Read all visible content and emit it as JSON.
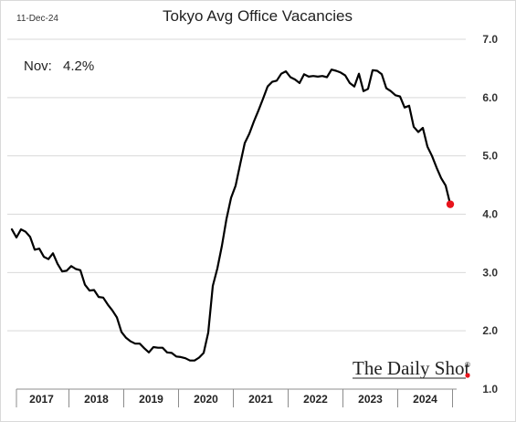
{
  "date_stamp": "11-Dec-24",
  "watermark": "The Daily Shot",
  "watermark_mark": "®",
  "chart_data": {
    "type": "line",
    "title": "Tokyo Avg Office Vacancies",
    "annotation": {
      "label": "Nov:",
      "value": "4.2%"
    },
    "y_ticks": [
      "7.0",
      "6.0",
      "5.0",
      "4.0",
      "3.0",
      "2.0",
      "1.0"
    ],
    "ylim": [
      1.0,
      7.0
    ],
    "x_labels": [
      "2017",
      "2018",
      "2019",
      "2020",
      "2021",
      "2022",
      "2023",
      "2024"
    ],
    "grid": "horizontal",
    "line_color": "#000000",
    "end_marker_color": "#e8141c",
    "series": [
      {
        "start": "2016-12",
        "values": [
          3.74,
          3.6,
          3.74,
          3.7,
          3.61,
          3.39,
          3.41,
          3.27,
          3.23,
          3.33,
          3.15,
          3.02,
          3.03,
          3.11,
          3.06,
          3.04,
          2.79,
          2.69,
          2.7,
          2.58,
          2.57,
          2.45,
          2.35,
          2.23,
          1.98,
          1.88,
          1.82,
          1.78,
          1.78,
          1.7,
          1.63,
          1.72,
          1.71,
          1.71,
          1.63,
          1.62,
          1.56,
          1.55,
          1.53,
          1.49,
          1.49,
          1.54,
          1.62,
          1.97,
          2.77,
          3.07,
          3.46,
          3.92,
          4.28,
          4.49,
          4.86,
          5.22,
          5.38,
          5.59,
          5.78,
          5.98,
          6.19,
          6.27,
          6.29,
          6.41,
          6.45,
          6.35,
          6.31,
          6.25,
          6.4,
          6.36,
          6.37,
          6.36,
          6.37,
          6.35,
          6.48,
          6.46,
          6.43,
          6.38,
          6.25,
          6.19,
          6.41,
          6.11,
          6.15,
          6.47,
          6.46,
          6.4,
          6.16,
          6.11,
          6.04,
          6.02,
          5.83,
          5.86,
          5.5,
          5.41,
          5.48,
          5.16,
          5.0,
          4.8,
          4.62,
          4.49,
          4.17
        ]
      }
    ]
  }
}
